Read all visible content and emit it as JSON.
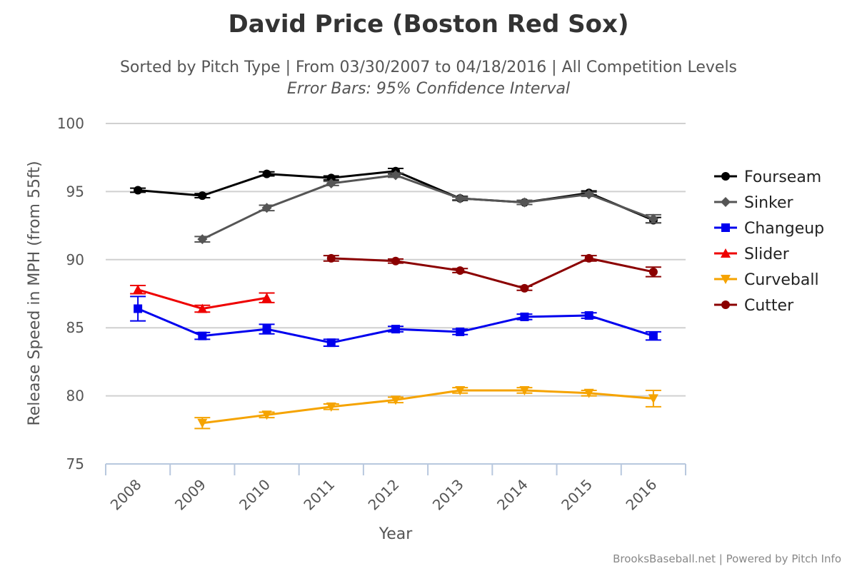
{
  "chart_data": {
    "type": "line",
    "title": "David Price (Boston Red Sox)",
    "subtitle": "Sorted by Pitch Type | From 03/30/2007 to 04/18/2016 | All Competition Levels",
    "subtitle2": "Error Bars: 95% Confidence Interval",
    "xlabel": "Year",
    "ylabel": "Release Speed in MPH (from 55ft)",
    "categories": [
      "2008",
      "2009",
      "2010",
      "2011",
      "2012",
      "2013",
      "2014",
      "2015",
      "2016"
    ],
    "ylim": [
      75,
      100
    ],
    "yticks": [
      75,
      80,
      85,
      90,
      95,
      100
    ],
    "grid": true,
    "legend_position": "right",
    "credit": "BrooksBaseball.net | Powered by Pitch Info",
    "series": [
      {
        "name": "Fourseam",
        "color": "#000000",
        "marker": "circle",
        "values": [
          95.1,
          94.7,
          96.3,
          96.0,
          96.5,
          94.5,
          94.2,
          94.9,
          92.9
        ],
        "err": [
          0.15,
          0.15,
          0.15,
          0.15,
          0.2,
          0.15,
          0.15,
          0.15,
          0.2
        ]
      },
      {
        "name": "Sinker",
        "color": "#555555",
        "marker": "diamond",
        "values": [
          null,
          91.5,
          93.8,
          95.6,
          96.2,
          94.5,
          94.2,
          94.8,
          93.0
        ],
        "err": [
          null,
          0.2,
          0.2,
          0.15,
          0.15,
          0.1,
          0.15,
          0.15,
          0.3
        ]
      },
      {
        "name": "Changeup",
        "color": "#0000ee",
        "marker": "square",
        "values": [
          86.4,
          84.4,
          84.9,
          83.9,
          84.9,
          84.7,
          85.8,
          85.9,
          84.4
        ],
        "err": [
          0.9,
          0.25,
          0.35,
          0.25,
          0.2,
          0.2,
          0.2,
          0.2,
          0.3
        ]
      },
      {
        "name": "Slider",
        "color": "#ee0000",
        "marker": "triangle",
        "values": [
          87.8,
          86.4,
          87.2,
          null,
          null,
          null,
          null,
          null,
          null
        ],
        "err": [
          0.3,
          0.25,
          0.35,
          null,
          null,
          null,
          null,
          null,
          null
        ]
      },
      {
        "name": "Curveball",
        "color": "#f5a300",
        "marker": "triangle-down",
        "values": [
          null,
          78.0,
          78.6,
          79.2,
          79.7,
          80.4,
          80.4,
          80.2,
          79.8
        ],
        "err": [
          null,
          0.4,
          0.2,
          0.2,
          0.2,
          0.2,
          0.2,
          0.2,
          0.6
        ]
      },
      {
        "name": "Cutter",
        "color": "#8b0000",
        "marker": "circle",
        "values": [
          null,
          null,
          null,
          90.1,
          89.9,
          89.2,
          87.9,
          90.1,
          89.1
        ],
        "err": [
          null,
          null,
          null,
          0.2,
          0.15,
          0.15,
          0.15,
          0.2,
          0.35
        ]
      }
    ]
  }
}
